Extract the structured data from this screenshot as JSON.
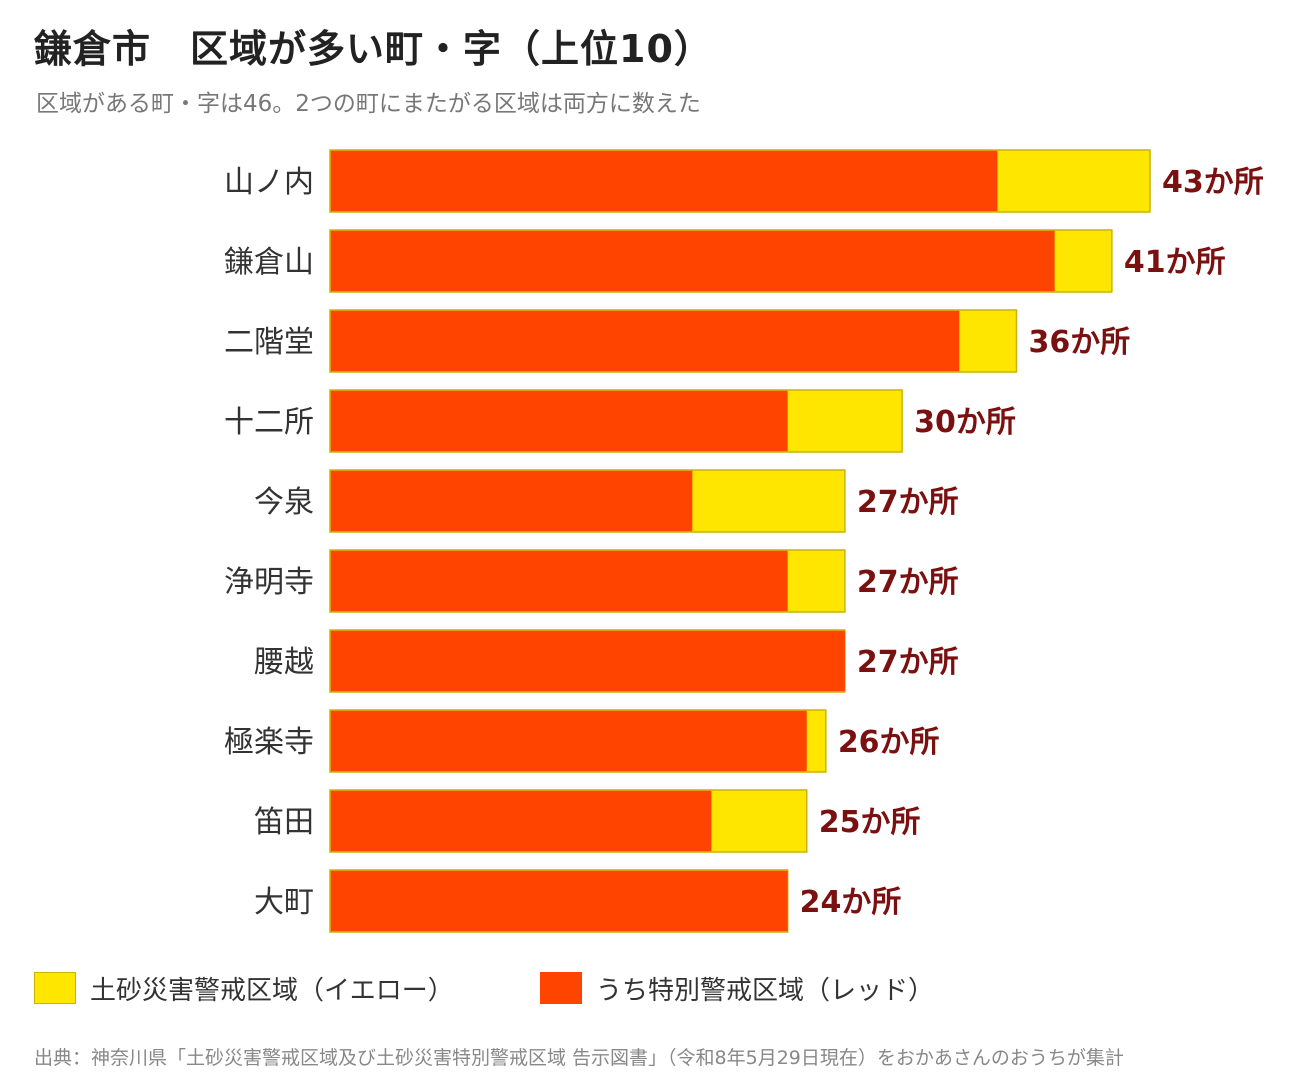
{
  "title": "鎌倉市　区域が多い町・字（上位10）",
  "subtitle": "区域がある町・字は46。2つの町にまたがる区域は両方に数えた",
  "chart_data": {
    "type": "bar",
    "orientation": "horizontal",
    "stacked": true,
    "categories": [
      "山ノ内",
      "鎌倉山",
      "二階堂",
      "十二所",
      "今泉",
      "浄明寺",
      "腰越",
      "極楽寺",
      "笛田",
      "大町"
    ],
    "series": [
      {
        "name": "うち特別警戒区域（レッド）",
        "color": "#ff4400",
        "values": [
          35,
          38,
          33,
          24,
          19,
          24,
          27,
          25,
          20,
          24
        ]
      },
      {
        "name": "土砂災害警戒区域（イエロー）",
        "color": "#ffe600",
        "values": [
          8,
          3,
          3,
          6,
          8,
          3,
          0,
          1,
          5,
          0
        ]
      }
    ],
    "totals": [
      43,
      41,
      36,
      30,
      27,
      27,
      27,
      26,
      25,
      24
    ],
    "data_labels": [
      "43か所",
      "41か所",
      "36か所",
      "30か所",
      "27か所",
      "27か所",
      "27か所",
      "26か所",
      "25か所",
      "24か所"
    ],
    "label_color": "#7a1010",
    "xlim": [
      0,
      43
    ],
    "grid": false,
    "legend_position": "bottom"
  },
  "legend": {
    "yellow_label": "土砂災害警戒区域（イエロー）",
    "red_label": "うち特別警戒区域（レッド）",
    "yellow_color": "#ffe600",
    "red_color": "#ff4400"
  },
  "source": "出典：神奈川県「土砂災害警戒区域及び土砂災害特別警戒区域 告示図書」（令和8年5月29日現在）をおかあさんのおうちが集計"
}
